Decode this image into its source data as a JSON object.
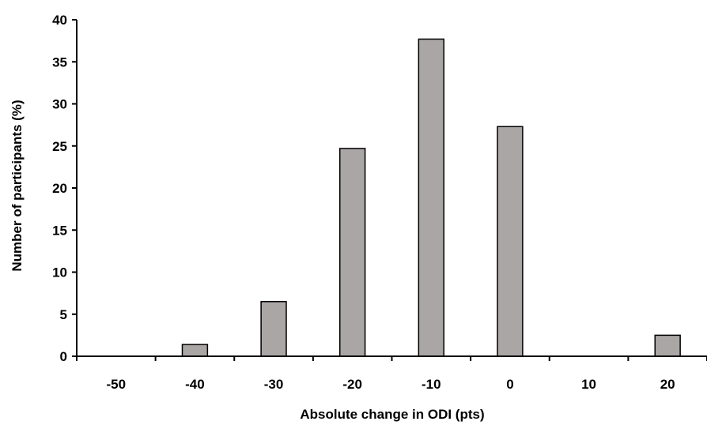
{
  "chart_data": {
    "type": "bar",
    "title": "",
    "xlabel": "Absolute change in ODI (pts)",
    "ylabel": "Number of participants (%)",
    "categories": [
      "-50",
      "-40",
      "-30",
      "-20",
      "-10",
      "0",
      "10",
      "20"
    ],
    "values": [
      0,
      1.4,
      6.5,
      24.7,
      37.7,
      27.3,
      0,
      2.5
    ],
    "ylim": [
      0,
      40
    ],
    "yticks": [
      "0",
      "5",
      "10",
      "15",
      "20",
      "25",
      "30",
      "35",
      "40"
    ],
    "grid": false,
    "legend": "none",
    "bar_color": "#aaa6a5"
  }
}
